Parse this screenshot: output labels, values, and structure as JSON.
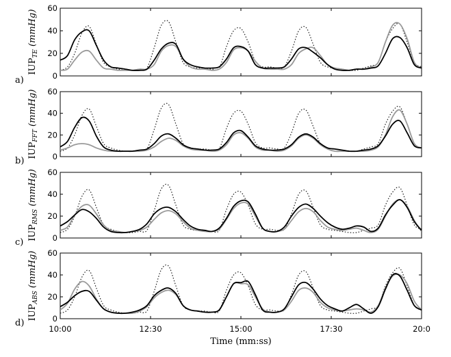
{
  "chart_data": {
    "type": "line",
    "xlabel": "Time (mm:ss)",
    "x_tick_labels": [
      "10:00",
      "12:30",
      "15:00",
      "17:30",
      "20:0"
    ],
    "xlim_seconds": [
      600,
      1200
    ],
    "x_tick_seconds": [
      600,
      750,
      900,
      1050,
      1200
    ],
    "ylim": [
      0,
      60
    ],
    "y_ticks": [
      "0",
      "20",
      "40",
      "60"
    ],
    "reference_sample_seconds": [
      600,
      612,
      624,
      636,
      648,
      660,
      672,
      684,
      696,
      708,
      720,
      732,
      744,
      756,
      768,
      780,
      792,
      804,
      816,
      828,
      840,
      852,
      864,
      876,
      888,
      900,
      912,
      924,
      936,
      948,
      960,
      972,
      984,
      996,
      1008,
      1020,
      1032,
      1044,
      1056,
      1068,
      1080,
      1092,
      1104,
      1116,
      1128,
      1140,
      1152,
      1164,
      1176,
      1188,
      1200
    ],
    "reference_series": {
      "name": "reference IUP (dotted)",
      "style": "dotted",
      "values": [
        5,
        8,
        20,
        38,
        44,
        28,
        12,
        8,
        6,
        5,
        5,
        6,
        7,
        25,
        45,
        48,
        30,
        12,
        8,
        7,
        7,
        6,
        7,
        26,
        40,
        42,
        30,
        13,
        8,
        8,
        7,
        8,
        22,
        40,
        43,
        28,
        12,
        8,
        7,
        6,
        5,
        5,
        7,
        9,
        12,
        30,
        42,
        46,
        30,
        12,
        8
      ]
    },
    "panels": [
      {
        "letter": "a)",
        "ylabel_main": "IUP",
        "ylabel_sub": "TE",
        "ylabel_unit": "(mmHg)",
        "series": [
          {
            "name": "estimate (black)",
            "style": "black",
            "values": [
              14,
              18,
              32,
              39,
              40,
              27,
              14,
              8,
              7,
              6,
              5,
              5,
              6,
              14,
              24,
              29,
              28,
              15,
              10,
              8,
              7,
              7,
              8,
              15,
              25,
              26,
              22,
              10,
              7,
              7,
              7,
              8,
              15,
              24,
              25,
              21,
              16,
              10,
              6,
              5,
              5,
              6,
              6,
              7,
              9,
              20,
              33,
              34,
              25,
              10,
              7
            ]
          },
          {
            "name": "estimate (gray)",
            "style": "gray",
            "values": [
              5,
              6,
              14,
              21,
              22,
              14,
              7,
              6,
              5,
              5,
              5,
              6,
              6,
              10,
              22,
              27,
              26,
              15,
              8,
              6,
              6,
              5,
              6,
              12,
              23,
              25,
              22,
              13,
              7,
              6,
              6,
              6,
              10,
              20,
              24,
              25,
              18,
              10,
              7,
              6,
              5,
              6,
              6,
              8,
              12,
              30,
              45,
              46,
              33,
              12,
              7
            ]
          }
        ]
      },
      {
        "letter": "b)",
        "ylabel_main": "IUP",
        "ylabel_sub": "FFT",
        "ylabel_unit": "(mmHg)",
        "series": [
          {
            "name": "estimate (black)",
            "style": "black",
            "values": [
              9,
              14,
              27,
              36,
              33,
              19,
              9,
              6,
              5,
              5,
              5,
              6,
              7,
              12,
              19,
              21,
              17,
              11,
              8,
              7,
              6,
              6,
              7,
              13,
              22,
              24,
              18,
              10,
              7,
              6,
              6,
              7,
              11,
              18,
              21,
              18,
              12,
              8,
              7,
              6,
              5,
              5,
              6,
              7,
              10,
              19,
              30,
              33,
              22,
              10,
              8
            ]
          },
          {
            "name": "estimate (gray)",
            "style": "gray",
            "values": [
              6,
              8,
              11,
              12,
              11,
              8,
              6,
              5,
              5,
              5,
              5,
              5,
              6,
              9,
              14,
              17,
              15,
              10,
              7,
              6,
              6,
              5,
              6,
              11,
              20,
              22,
              17,
              9,
              6,
              6,
              5,
              6,
              10,
              17,
              20,
              17,
              11,
              7,
              5,
              5,
              5,
              5,
              5,
              6,
              9,
              20,
              37,
              43,
              30,
              12,
              8
            ]
          }
        ]
      },
      {
        "letter": "c)",
        "ylabel_main": "IUP",
        "ylabel_sub": "RMS",
        "ylabel_unit": "(mmHg)",
        "series": [
          {
            "name": "estimate (black)",
            "style": "black",
            "values": [
              11,
              15,
              21,
              26,
              24,
              18,
              10,
              6,
              5,
              5,
              6,
              8,
              13,
              22,
              27,
              28,
              24,
              17,
              11,
              8,
              7,
              6,
              9,
              18,
              29,
              34,
              33,
              22,
              9,
              6,
              6,
              10,
              20,
              28,
              31,
              27,
              20,
              14,
              10,
              8,
              9,
              11,
              10,
              6,
              9,
              21,
              30,
              35,
              28,
              15,
              7
            ]
          },
          {
            "name": "estimate (gray)",
            "style": "gray",
            "values": [
              7,
              10,
              21,
              29,
              30,
              22,
              12,
              7,
              6,
              5,
              6,
              7,
              10,
              17,
              23,
              25,
              22,
              15,
              9,
              7,
              6,
              6,
              8,
              17,
              27,
              32,
              31,
              20,
              9,
              6,
              6,
              8,
              16,
              24,
              27,
              24,
              16,
              10,
              8,
              7,
              8,
              9,
              7,
              5,
              8,
              20,
              31,
              35,
              29,
              16,
              6
            ]
          }
        ]
      },
      {
        "letter": "d)",
        "ylabel_main": "IUP",
        "ylabel_sub": "ABS",
        "ylabel_unit": "(mmHg)",
        "series": [
          {
            "name": "estimate (black)",
            "style": "black",
            "values": [
              11,
              15,
              21,
              25,
              25,
              17,
              9,
              6,
              5,
              5,
              6,
              8,
              12,
              21,
              26,
              28,
              23,
              12,
              8,
              7,
              6,
              6,
              8,
              20,
              32,
              33,
              34,
              22,
              8,
              6,
              6,
              9,
              20,
              31,
              33,
              27,
              18,
              12,
              9,
              7,
              10,
              13,
              9,
              5,
              11,
              27,
              40,
              39,
              26,
              12,
              8
            ]
          },
          {
            "name": "estimate (gray)",
            "style": "gray",
            "values": [
              8,
              14,
              27,
              34,
              30,
              18,
              9,
              6,
              5,
              5,
              5,
              7,
              11,
              19,
              24,
              26,
              22,
              12,
              8,
              7,
              6,
              6,
              8,
              20,
              32,
              32,
              31,
              20,
              9,
              6,
              6,
              8,
              16,
              26,
              28,
              24,
              15,
              10,
              8,
              7,
              8,
              9,
              8,
              6,
              12,
              28,
              39,
              40,
              32,
              16,
              8
            ]
          }
        ]
      }
    ]
  }
}
